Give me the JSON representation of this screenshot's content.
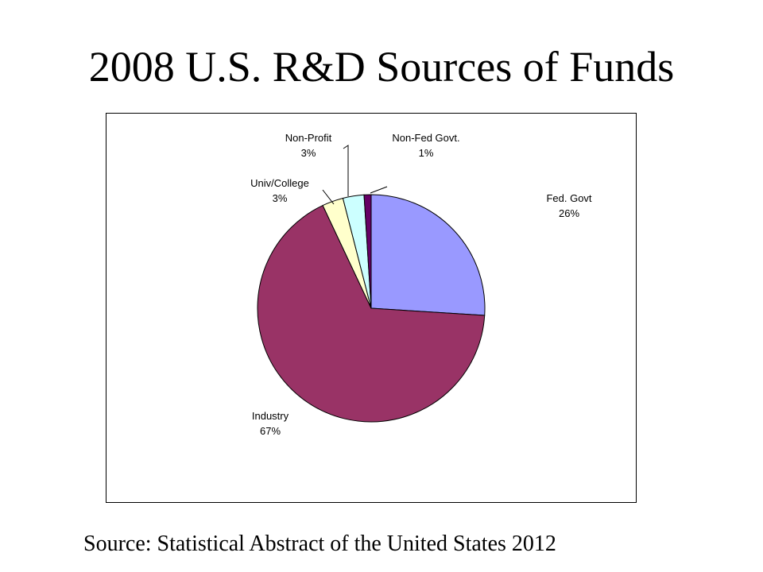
{
  "slide": {
    "title": "2008 U.S. R&D Sources of Funds",
    "source": "Source: Statistical Abstract of the United States 2012"
  },
  "chart_data": {
    "type": "pie",
    "title": "",
    "slices": [
      {
        "label": "Fed. Govt",
        "percent_text": "26%",
        "value": 26,
        "color": "#9999FF"
      },
      {
        "label": "Industry",
        "percent_text": "67%",
        "value": 67,
        "color": "#993366"
      },
      {
        "label": "Univ/College",
        "percent_text": "3%",
        "value": 3,
        "color": "#FFFFCC"
      },
      {
        "label": "Non-Profit",
        "percent_text": "3%",
        "value": 3,
        "color": "#CCFFFF"
      },
      {
        "label": "Non-Fed Govt.",
        "percent_text": "1%",
        "value": 1,
        "color": "#660066"
      }
    ]
  }
}
